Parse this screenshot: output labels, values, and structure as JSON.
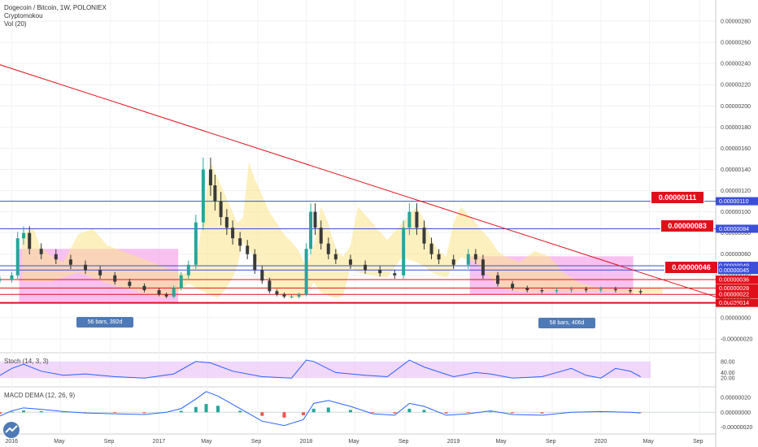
{
  "header": {
    "title": "Dogecoin / Bitcoin, 1W, POLONIEX",
    "indicator": "Cryptomokou",
    "volume": "Vol (20)"
  },
  "callouts": [
    "0.00000111",
    "0.00000083",
    "0.00000046"
  ],
  "rulers": [
    "56 bars, 392d",
    "58 bars, 406d"
  ],
  "colors": {
    "trendline": "#e0101a",
    "level_blue": "#3b4fd8",
    "level_red": "#e0101a",
    "cloud_gray": "#8e8e8e",
    "cloud_yellow": "#fbe48a",
    "range_pink": "#f28ee3",
    "stoch_band": "#e7bdf7",
    "macd_pos": "#26a69a",
    "macd_neg": "#ef5350"
  },
  "chart_data": [
    {
      "type": "candlestick",
      "title": "Dogecoin / Bitcoin, 1W, POLONIEX",
      "x_ticks": [
        "2016",
        "May",
        "Sep",
        "2017",
        "May",
        "Sep",
        "2018",
        "May",
        "Sep",
        "2019",
        "May",
        "Sep",
        "2020",
        "May",
        "Sep"
      ],
      "y_ticks": [
        "0.00000280",
        "0.00000260",
        "0.00000240",
        "0.00000220",
        "0.00000200",
        "0.00000180",
        "0.00000160",
        "0.00000140",
        "0.00000120",
        "0.00000100",
        "0.00000080",
        "0.00000060",
        "0.00000040",
        "0.00000020",
        "0.00000000",
        "-0.00000020"
      ],
      "ylim": [
        -3e-07,
        3e-06
      ],
      "price_labels": [
        {
          "value": 1.1e-06,
          "label": "0.00000110",
          "color": "#3b4fd8"
        },
        {
          "value": 8.4e-07,
          "label": "0.00000084",
          "color": "#3b4fd8"
        },
        {
          "value": 4.9e-07,
          "label": "0.00000049",
          "color": "#3b4fd8"
        },
        {
          "value": 4.5e-07,
          "label": "0.00000045",
          "color": "#3b4fd8"
        },
        {
          "value": 3.6e-07,
          "label": "0.00000036",
          "color": "#e0101a"
        },
        {
          "value": 2.8e-07,
          "label": "0.00000028",
          "color": "#e0101a"
        },
        {
          "value": 2.2e-07,
          "label": "0.00000022",
          "color": "#e0101a"
        },
        {
          "value": 1.4e-07,
          "label": "0.00000014",
          "color": "#e0101a"
        }
      ],
      "horizontal_levels": [
        1.1e-06,
        8.4e-07,
        4.9e-07,
        3.6e-07,
        2.8e-07,
        2.2e-07,
        1.4e-07
      ],
      "trendline": {
        "from": [
          2015.85,
          2.42e-06
        ],
        "to": [
          2020.95,
          1.2e-07
        ]
      },
      "ranges": [
        {
          "from": 2016.05,
          "to": 2017.13,
          "low": 1.4e-07,
          "high": 6.5e-07,
          "label": "56 bars, 392d"
        },
        {
          "from": 2019.11,
          "to": 2020.22,
          "low": 2.2e-07,
          "high": 5.8e-07,
          "label": "58 bars, 406d"
        }
      ],
      "series": [
        {
          "name": "close",
          "x": [
            2015.92,
            2016.0,
            2016.04,
            2016.08,
            2016.12,
            2016.2,
            2016.3,
            2016.4,
            2016.5,
            2016.6,
            2016.7,
            2016.8,
            2016.9,
            2017.0,
            2017.05,
            2017.1,
            2017.15,
            2017.2,
            2017.25,
            2017.3,
            2017.35,
            2017.38,
            2017.42,
            2017.46,
            2017.5,
            2017.55,
            2017.6,
            2017.65,
            2017.7,
            2017.75,
            2017.8,
            2017.85,
            2017.9,
            2017.95,
            2018.0,
            2018.03,
            2018.06,
            2018.1,
            2018.15,
            2018.2,
            2018.3,
            2018.4,
            2018.5,
            2018.6,
            2018.66,
            2018.7,
            2018.75,
            2018.8,
            2018.85,
            2018.9,
            2019.0,
            2019.1,
            2019.15,
            2019.2,
            2019.3,
            2019.4,
            2019.5,
            2019.6,
            2019.7,
            2019.8,
            2019.9,
            2020.0,
            2020.1,
            2020.2,
            2020.27
          ],
          "values": [
            3.6e-07,
            4e-07,
            7.5e-07,
            8e-07,
            6.5e-07,
            6e-07,
            5.5e-07,
            5e-07,
            4.5e-07,
            4e-07,
            3.4e-07,
            3e-07,
            2.6e-07,
            2.2e-07,
            2e-07,
            2.8e-07,
            4e-07,
            5e-07,
            9e-07,
            1.4e-06,
            1.25e-06,
            1.1e-06,
            9.5e-07,
            8.5e-07,
            7.5e-07,
            6.8e-07,
            6e-07,
            4.5e-07,
            3.5e-07,
            2.5e-07,
            2.2e-07,
            2e-07,
            2e-07,
            2.2e-07,
            6.5e-07,
            1e-06,
            8.5e-07,
            7e-07,
            6e-07,
            5.5e-07,
            5e-07,
            4.5e-07,
            4.2e-07,
            4e-07,
            8.5e-07,
            1e-06,
            8.5e-07,
            7e-07,
            6e-07,
            5.5e-07,
            5e-07,
            6e-07,
            5.5e-07,
            4e-07,
            3.2e-07,
            2.8e-07,
            2.6e-07,
            2.5e-07,
            2.6e-07,
            2.7e-07,
            2.6e-07,
            2.7e-07,
            2.6e-07,
            2.5e-07,
            2.4e-07
          ]
        }
      ]
    },
    {
      "type": "line",
      "title": "Stoch (14, 3, 3)",
      "y_ticks": [
        "80.00",
        "40.00",
        "20.00"
      ],
      "ylim": [
        0,
        100
      ],
      "band": [
        20,
        80
      ],
      "series": [
        {
          "name": "%K",
          "x": [
            2015.92,
            2016.0,
            2016.08,
            2016.2,
            2016.35,
            2016.5,
            2016.7,
            2016.9,
            2017.1,
            2017.25,
            2017.35,
            2017.5,
            2017.7,
            2017.9,
            2018.0,
            2018.05,
            2018.2,
            2018.4,
            2018.55,
            2018.7,
            2018.8,
            2019.0,
            2019.15,
            2019.25,
            2019.4,
            2019.6,
            2019.8,
            2019.9,
            2020.0,
            2020.1,
            2020.2,
            2020.27
          ],
          "values": [
            30,
            55,
            70,
            45,
            30,
            35,
            25,
            20,
            35,
            80,
            75,
            45,
            25,
            20,
            85,
            80,
            40,
            30,
            25,
            85,
            60,
            25,
            40,
            35,
            20,
            25,
            55,
            30,
            20,
            55,
            45,
            25
          ]
        }
      ]
    },
    {
      "type": "line",
      "title": "MACD DEMA (12, 26, 9)",
      "y_ticks": [
        "0.00000020",
        "0.00000000",
        "-0.00000020"
      ],
      "ylim": [
        -2.5e-07,
        3e-07
      ],
      "series": [
        {
          "name": "MACD",
          "x": [
            2015.92,
            2016.0,
            2016.08,
            2016.2,
            2016.35,
            2016.5,
            2016.7,
            2016.9,
            2017.05,
            2017.15,
            2017.25,
            2017.32,
            2017.4,
            2017.55,
            2017.7,
            2017.85,
            2017.98,
            2018.05,
            2018.15,
            2018.3,
            2018.45,
            2018.6,
            2018.7,
            2018.8,
            2018.95,
            2019.1,
            2019.25,
            2019.4,
            2019.6,
            2019.8,
            2020.0,
            2020.2,
            2020.27
          ],
          "values": [
            -5e-08,
            2e-08,
            6e-08,
            4e-08,
            1e-08,
            -1e-08,
            -2e-08,
            -3e-08,
            0.0,
            5e-08,
            1.8e-07,
            2.8e-07,
            2.2e-07,
            5e-08,
            -1.2e-07,
            -1.8e-07,
            -1e-07,
            1.2e-07,
            1.6e-07,
            8e-08,
            -2e-08,
            -4e-08,
            1.2e-07,
            8e-08,
            -4e-08,
            -2e-08,
            2e-08,
            -3e-08,
            -4e-08,
            0.0,
            1e-08,
            0.0,
            -1e-08
          ]
        }
      ]
    }
  ]
}
